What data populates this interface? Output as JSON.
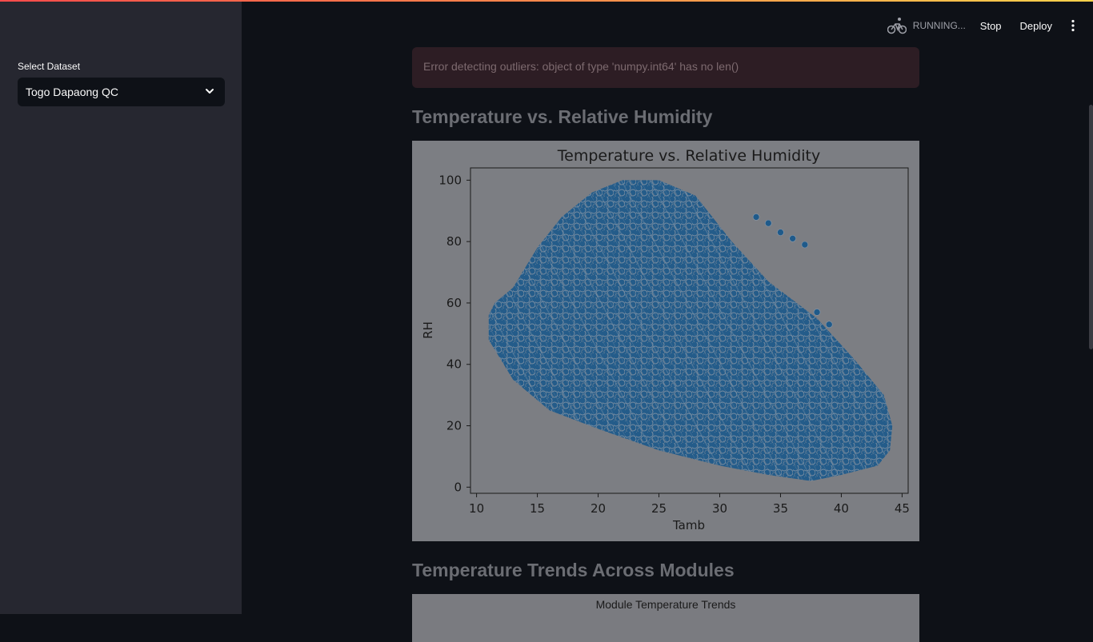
{
  "sidebar": {
    "select_label": "Select Dataset",
    "selected_value": "Togo Dapaong QC"
  },
  "header": {
    "status": "RUNNING...",
    "stop_label": "Stop",
    "deploy_label": "Deploy",
    "status_icon": "cyclist-icon",
    "menu_icon": "kebab-menu-icon"
  },
  "main": {
    "error_message": "Error detecting outliers: object of type 'numpy.int64' has no len()",
    "section1_title": "Temperature vs. Relative Humidity",
    "section2_title": "Temperature Trends Across Modules",
    "chart2_title": "Module Temperature Trends"
  },
  "colors": {
    "accent_red": "#ff4b4b",
    "sidebar_bg": "#262730",
    "main_bg": "#0e1117",
    "point_color": "#1f5a8a"
  },
  "chart_data": {
    "type": "scatter",
    "title": "Temperature vs. Relative Humidity",
    "xlabel": "Tamb",
    "ylabel": "RH",
    "xlim": [
      9.5,
      45.5
    ],
    "ylim": [
      -2,
      104
    ],
    "xticks": [
      10,
      15,
      20,
      25,
      30,
      35,
      40,
      45
    ],
    "yticks": [
      0,
      20,
      40,
      60,
      80,
      100
    ],
    "envelope": [
      [
        11.0,
        56
      ],
      [
        11.5,
        60
      ],
      [
        13.0,
        65
      ],
      [
        15.0,
        78
      ],
      [
        17.0,
        88
      ],
      [
        19.5,
        96
      ],
      [
        22.0,
        100
      ],
      [
        25.0,
        100
      ],
      [
        28.0,
        95
      ],
      [
        31.0,
        80
      ],
      [
        34.0,
        67
      ],
      [
        38.0,
        55
      ],
      [
        41.0,
        42
      ],
      [
        43.5,
        30
      ],
      [
        44.2,
        20
      ],
      [
        44.0,
        12
      ],
      [
        43.0,
        7
      ],
      [
        40.0,
        4
      ],
      [
        37.5,
        2
      ],
      [
        34.0,
        4
      ],
      [
        30.0,
        7
      ],
      [
        25.0,
        12
      ],
      [
        20.0,
        19
      ],
      [
        16.0,
        25
      ],
      [
        13.0,
        35
      ],
      [
        11.0,
        48
      ]
    ],
    "outlier_points": [
      [
        33,
        88
      ],
      [
        34,
        86
      ],
      [
        35,
        83
      ],
      [
        36,
        81
      ],
      [
        37,
        79
      ],
      [
        38,
        57
      ],
      [
        39,
        53
      ]
    ]
  }
}
